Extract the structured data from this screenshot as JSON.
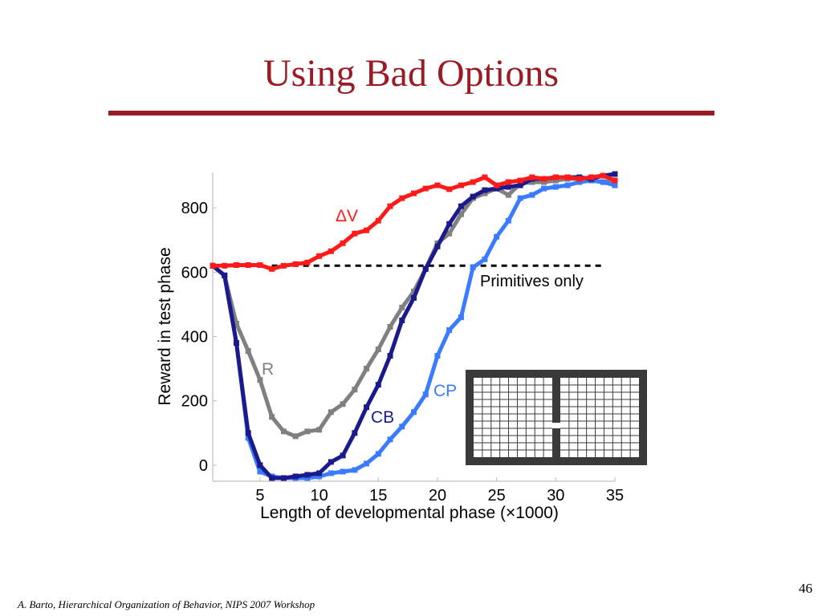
{
  "slide": {
    "title": "Using Bad Options",
    "number": "46",
    "footer": "A. Barto, Hierarchical Organization of Behavior, NIPS 2007 Workshop"
  },
  "colors": {
    "title": "#9b1b24",
    "dV": "#ff1a1a",
    "R": "#808080",
    "CB": "#1a1a8c",
    "CP": "#3a7bff",
    "baseline": "#000000",
    "maze": "#3a3a3a"
  },
  "chart_data": {
    "type": "line",
    "xlabel": "Length of developmental phase (×1000)",
    "ylabel": "Reward in test phase",
    "xlim": [
      1,
      35
    ],
    "ylim": [
      -50,
      910
    ],
    "xticks": [
      5,
      10,
      15,
      20,
      25,
      30,
      35
    ],
    "yticks": [
      0,
      200,
      400,
      600,
      800
    ],
    "grid": false,
    "x": [
      1,
      2,
      3,
      4,
      5,
      6,
      7,
      8,
      9,
      10,
      11,
      12,
      13,
      14,
      15,
      16,
      17,
      18,
      19,
      20,
      21,
      22,
      23,
      24,
      25,
      26,
      27,
      28,
      29,
      30,
      31,
      32,
      33,
      34,
      35
    ],
    "series": [
      {
        "name": "ΔV",
        "color_key": "dV",
        "values": [
          620,
          620,
          622,
          622,
          622,
          610,
          620,
          625,
          630,
          650,
          665,
          690,
          720,
          730,
          760,
          805,
          830,
          845,
          860,
          870,
          858,
          870,
          880,
          895,
          870,
          880,
          885,
          895,
          890,
          895,
          895,
          890,
          895,
          900,
          885
        ]
      },
      {
        "name": "R",
        "color_key": "R",
        "values": [
          620,
          590,
          440,
          355,
          265,
          150,
          105,
          90,
          105,
          110,
          165,
          190,
          235,
          300,
          360,
          430,
          490,
          540,
          610,
          690,
          720,
          780,
          830,
          845,
          860,
          840,
          875,
          880,
          880,
          885,
          890,
          890,
          885,
          880,
          885
        ]
      },
      {
        "name": "CB",
        "color_key": "CB",
        "values": [
          620,
          590,
          380,
          100,
          0,
          -40,
          -40,
          -35,
          -30,
          -25,
          10,
          30,
          100,
          180,
          250,
          340,
          450,
          520,
          610,
          680,
          750,
          805,
          835,
          855,
          860,
          865,
          870,
          890,
          890,
          895,
          895,
          895,
          890,
          900,
          905
        ]
      },
      {
        "name": "CP",
        "color_key": "CP",
        "values": [
          620,
          590,
          380,
          85,
          -20,
          -35,
          -40,
          -40,
          -40,
          -35,
          -25,
          -20,
          -15,
          5,
          35,
          80,
          120,
          165,
          220,
          340,
          420,
          460,
          615,
          640,
          710,
          760,
          830,
          840,
          860,
          865,
          870,
          880,
          885,
          880,
          870
        ]
      }
    ],
    "baseline": {
      "label": "Primitives only",
      "value": 620
    },
    "annotations": {
      "dV": "ΔV",
      "R": "R",
      "CB": "CB",
      "CP": "CP"
    },
    "inset": {
      "description_icon": "maze-grid-icon",
      "rooms": 2,
      "cols_per_room": 9,
      "rows": 11,
      "doorway_row": 7
    }
  }
}
